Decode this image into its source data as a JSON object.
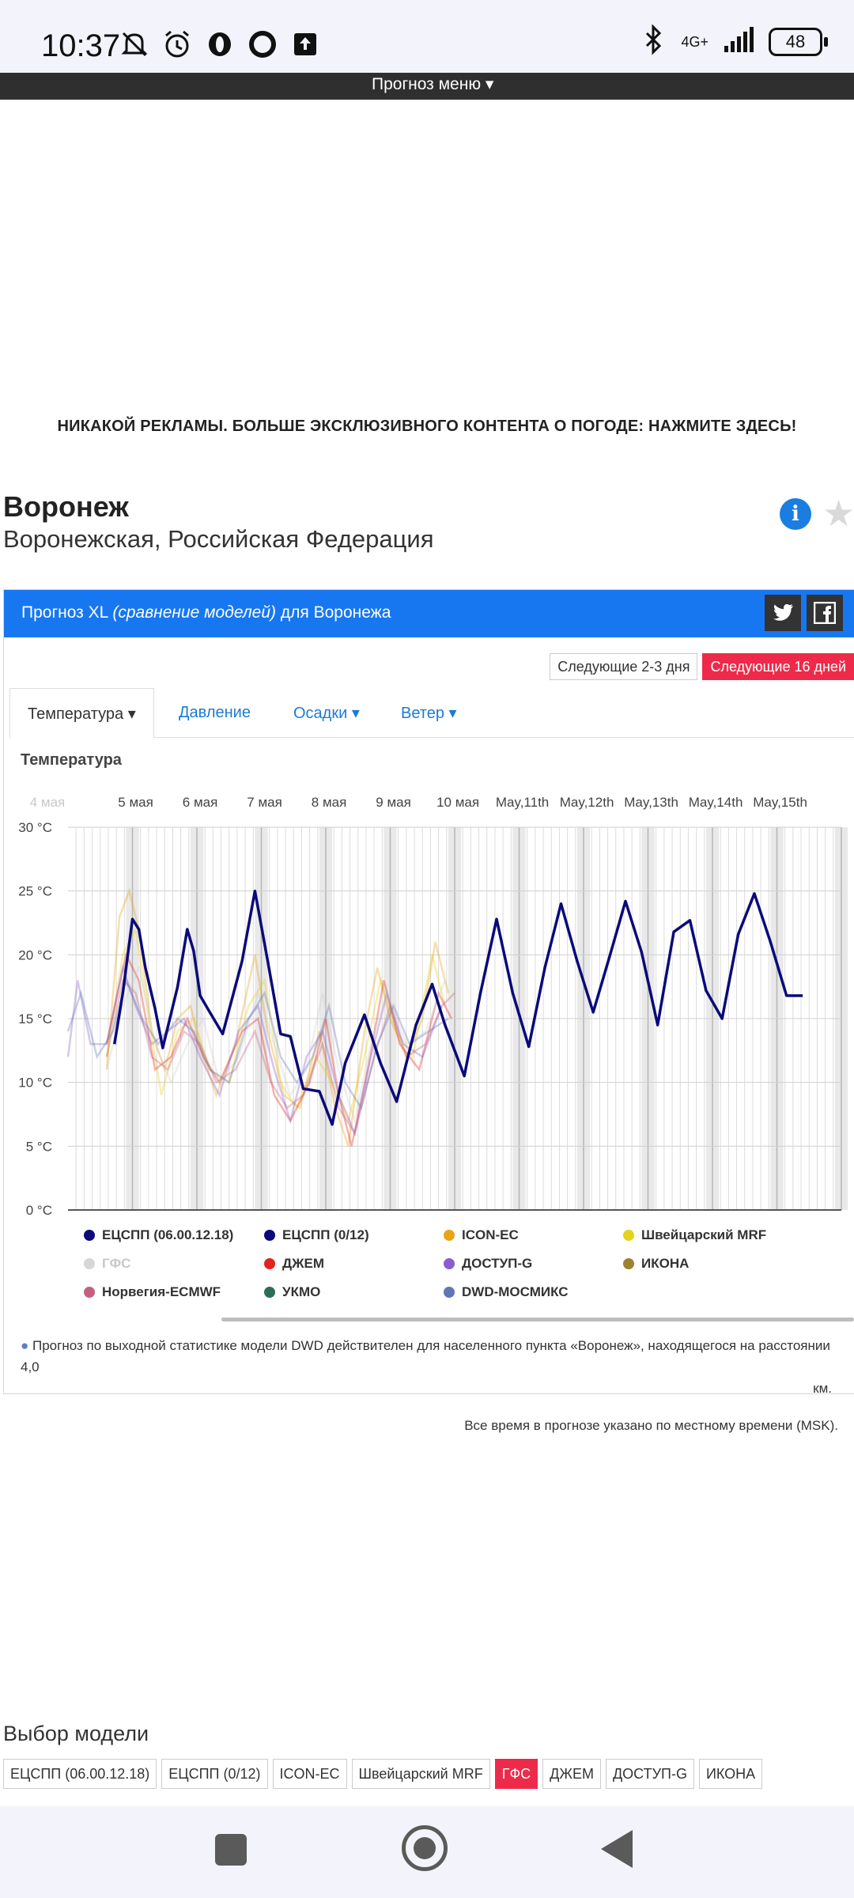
{
  "status_bar": {
    "time": "10:37",
    "network": "4G+",
    "battery": "48",
    "icons": [
      "mute-icon",
      "alarm-icon",
      "opera-icon",
      "circle-icon",
      "upload-icon",
      "bluetooth-icon",
      "signal-icon"
    ]
  },
  "menu": {
    "label": "Прогноз меню ▾"
  },
  "promo": "НИКАКОЙ РЕКЛАМЫ. БОЛЬШЕ ЭКСКЛЮЗИВНОГО КОНТЕНТА О ПОГОДЕ: НАЖМИТЕ ЗДЕСЬ!",
  "location": {
    "city": "Воронеж",
    "region": "Воронежская, Российская Федерация"
  },
  "panel": {
    "title_prefix": "Прогноз XL ",
    "title_em": "(сравнение моделей)",
    "title_suffix": " для Воронежа",
    "range_buttons": [
      "Следующие 2-3 дня",
      "Следующие 16 дней"
    ],
    "tabs": [
      "Температура ▾",
      "Давление",
      "Осадки ▾",
      "Ветер ▾"
    ],
    "section_title": "Температура"
  },
  "chart_data": {
    "type": "line",
    "title": "Температура",
    "x_labels": [
      "4 мая",
      "5 мая",
      "6 мая",
      "7 мая",
      "8 мая",
      "9 мая",
      "10 мая",
      "May,11th",
      "May,12th",
      "May,13th",
      "May,14th",
      "May,15th"
    ],
    "y_ticks": [
      "0 °C",
      "5 °C",
      "10 °C",
      "15 °C",
      "20 °C",
      "25 °C",
      "30 °C"
    ],
    "ylim": [
      0,
      30
    ],
    "x_unit_days": [
      4,
      16
    ],
    "grid": true,
    "series": [
      {
        "name": "ЕЦСПП (0/12)",
        "color": "#0a0a7a",
        "emphasis": true,
        "x": [
          4.72,
          4.85,
          5.0,
          5.1,
          5.2,
          5.35,
          5.47,
          5.7,
          5.85,
          5.95,
          6.05,
          6.2,
          6.4,
          6.7,
          6.9,
          7.1,
          7.3,
          7.45,
          7.65,
          7.9,
          8.1,
          8.3,
          8.6,
          8.85,
          9.1,
          9.4,
          9.65,
          9.85,
          10.15,
          10.4,
          10.65,
          10.9,
          11.15,
          11.4,
          11.65,
          11.9,
          12.15,
          12.4,
          12.65,
          12.9,
          13.15,
          13.4,
          13.65,
          13.9,
          14.15,
          14.4,
          14.65,
          14.9,
          15.15,
          15.4
        ],
        "y": [
          13.0,
          17.0,
          22.8,
          22.0,
          19.0,
          15.8,
          12.7,
          17.5,
          22.0,
          20.3,
          16.8,
          15.5,
          13.8,
          19.5,
          25.0,
          19.5,
          13.8,
          13.6,
          9.5,
          9.3,
          6.7,
          11.5,
          15.3,
          11.5,
          8.5,
          14.5,
          17.7,
          14.5,
          10.5,
          17.0,
          22.8,
          17.0,
          12.8,
          19.0,
          24.0,
          19.5,
          15.5,
          19.8,
          24.2,
          20.2,
          14.5,
          21.8,
          22.7,
          17.2,
          15.0,
          21.6,
          24.8,
          21.0,
          16.8,
          16.8
        ]
      },
      {
        "name": "ЕЦСПП (06.00.12.18)",
        "color": "#1a1a9a"
      },
      {
        "name": "ICON-EC",
        "color": "#e8a317"
      },
      {
        "name": "Швейцарский MRF",
        "color": "#e6d21c"
      },
      {
        "name": "ГФС",
        "color": "#cfcfcf"
      },
      {
        "name": "ДЖЕМ",
        "color": "#e3221e"
      },
      {
        "name": "ДОСТУП-G",
        "color": "#8a5cd1"
      },
      {
        "name": "ИКОНА",
        "color": "#a0812f"
      },
      {
        "name": "Норвегия-ECMWF",
        "color": "#c6607e"
      },
      {
        "name": "УКМО",
        "color": "#2c6e55"
      },
      {
        "name": "DWD-МОСМИКС",
        "color": "#5f78b5"
      }
    ]
  },
  "note": {
    "text": "Прогноз по выходной статистике модели DWD действителен для населенного пункта «Воронеж», находящегося на расстоянии 4,0",
    "unit": "км."
  },
  "timezone_note": "Все время в прогнозе указано по местному времени (MSK).",
  "model_select": {
    "title": "Выбор модели",
    "buttons": [
      "ЕЦСПП (06.00.12.18)",
      "ЕЦСПП (0/12)",
      "ICON-EC",
      "Швейцарский MRF",
      "ГФС",
      "ДЖЕМ",
      "ДОСТУП-G",
      "ИКОНА"
    ],
    "active": "ГФС"
  },
  "legend_bold_blue": "#0a0a7a"
}
